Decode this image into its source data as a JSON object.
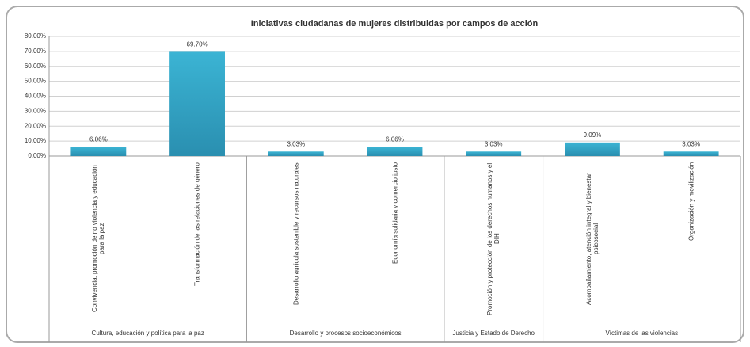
{
  "chart_data": {
    "type": "bar",
    "title": "Iniciativas ciudadanas de mujeres distribuidas por campos de acción",
    "groups": [
      {
        "name": "Cultura, educación y política para la paz",
        "categories": [
          "Convivencia, promoción de no violencia y educación para la paz",
          "Transformación de las relaciones de género"
        ]
      },
      {
        "name": "Desarrollo y procesos socioeconómicos",
        "categories": [
          "Desarrollo agrícola sostenible y recursos naturales",
          "Economía solidaria y comercio justo"
        ]
      },
      {
        "name": "Justicia y Estado de Derecho",
        "categories": [
          "Promoción y protección de los derechos humanos y el DIH"
        ]
      },
      {
        "name": "Víctimas de las violencias",
        "categories": [
          "Acompañamiento, atención integral y bienestar psicosocial",
          "Organización y movilización"
        ]
      }
    ],
    "values": [
      6.06,
      69.7,
      3.03,
      6.06,
      3.03,
      9.09,
      3.03
    ],
    "value_labels": [
      "6.06%",
      "69.70%",
      "3.03%",
      "6.06%",
      "3.03%",
      "9.09%",
      "3.03%"
    ],
    "color": "#3bb4d4",
    "ylim": [
      0,
      80
    ],
    "yticks": [
      {
        "value": 0,
        "label": "0.00%"
      },
      {
        "value": 10,
        "label": "10.00%"
      },
      {
        "value": 20,
        "label": "20.00%"
      },
      {
        "value": 30,
        "label": "30.00%"
      },
      {
        "value": 40,
        "label": "40.00%"
      },
      {
        "value": 50,
        "label": "50.00%"
      },
      {
        "value": 60,
        "label": "60.00%"
      },
      {
        "value": 70,
        "label": "70.00%"
      },
      {
        "value": 80,
        "label": "80.00%"
      }
    ],
    "grid": true
  }
}
